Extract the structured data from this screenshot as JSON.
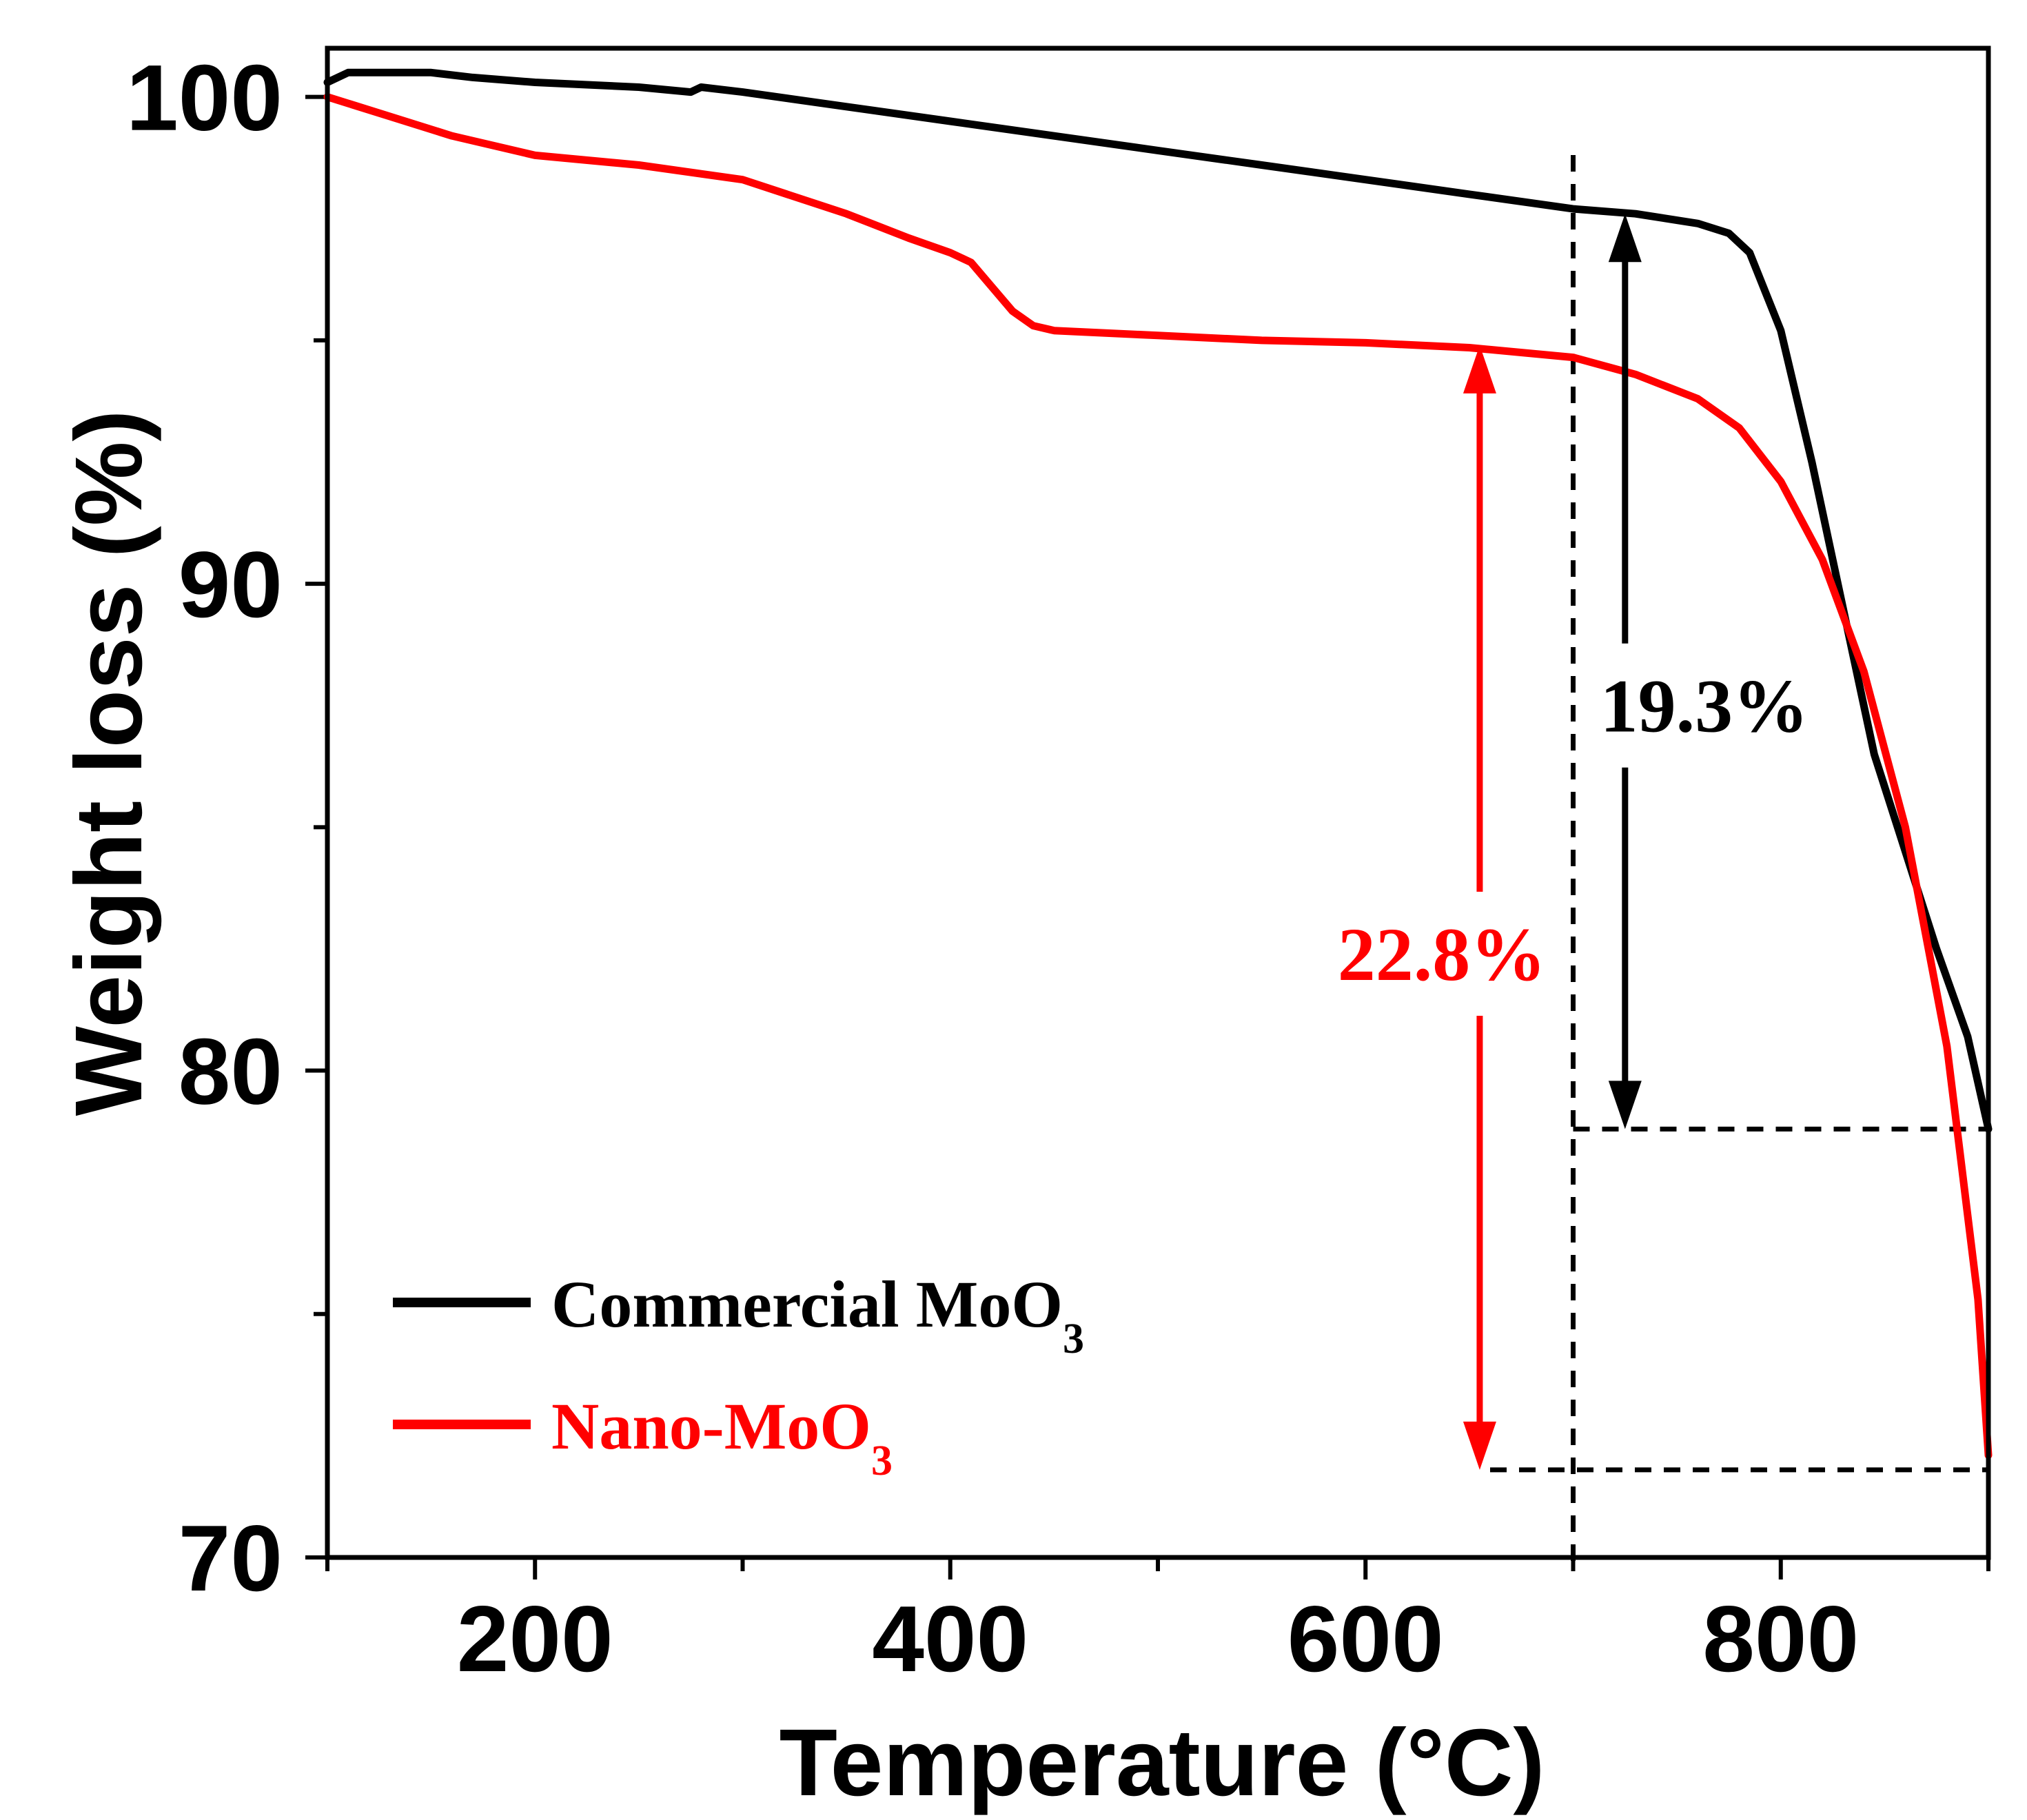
{
  "chart_data": {
    "type": "line",
    "xlabel": "Temperature (°C)",
    "ylabel": "Weight loss (%)",
    "xlim": [
      100,
      900
    ],
    "ylim": [
      70,
      101.0
    ],
    "x_ticks": [
      200,
      400,
      600,
      800
    ],
    "y_ticks": [
      70,
      80,
      90,
      100
    ],
    "x_tick_labels": [
      "200",
      "400",
      "600",
      "800"
    ],
    "y_tick_labels": [
      "70",
      "80",
      "90",
      "100"
    ],
    "series": [
      {
        "name": "Commercial MoO3",
        "legend_main": "Commercial MoO",
        "legend_sub": "3",
        "color": "#000000",
        "x": [
          100,
          110,
          120,
          150,
          170,
          200,
          250,
          275,
          280,
          300,
          350,
          400,
          450,
          500,
          550,
          600,
          650,
          700,
          730,
          760,
          775,
          785,
          800,
          815,
          830,
          845,
          860,
          875,
          890,
          900
        ],
        "y": [
          100.3,
          100.5,
          100.5,
          100.5,
          100.4,
          100.3,
          100.2,
          100.1,
          100.2,
          100.1,
          99.8,
          99.5,
          99.2,
          98.9,
          98.6,
          98.3,
          98.0,
          97.7,
          97.6,
          97.4,
          97.2,
          96.8,
          95.2,
          92.5,
          89.5,
          86.5,
          84.5,
          82.5,
          80.7,
          78.8
        ]
      },
      {
        "name": "Nano-MoO3",
        "legend_main": "Nano-MoO",
        "legend_sub": "3",
        "color": "#ff0000",
        "x": [
          100,
          130,
          160,
          200,
          250,
          300,
          350,
          380,
          400,
          410,
          420,
          430,
          440,
          450,
          500,
          550,
          600,
          650,
          700,
          730,
          760,
          780,
          800,
          820,
          840,
          860,
          880,
          895,
          900
        ],
        "y": [
          100.0,
          99.6,
          99.2,
          98.8,
          98.6,
          98.3,
          97.6,
          97.1,
          96.8,
          96.6,
          96.1,
          95.6,
          95.3,
          95.2,
          95.1,
          95.0,
          94.95,
          94.85,
          94.65,
          94.3,
          93.8,
          93.2,
          92.1,
          90.5,
          88.2,
          85.0,
          80.5,
          75.3,
          72.1
        ]
      }
    ],
    "reference_lines": {
      "vertical_x": 700,
      "horizontal_commercial_y": 78.8,
      "horizontal_nano_y": 71.8,
      "horizontal_commercial_from_x": 700,
      "horizontal_nano_from_x": 660
    },
    "annotations": [
      {
        "text": "19.3%",
        "color": "#000000",
        "x": 725,
        "y_top": 97.6,
        "y_bottom": 78.8,
        "label_y": 87.5
      },
      {
        "text": "22.8%",
        "color": "#ff0000",
        "x": 655,
        "y_top": 94.9,
        "y_bottom": 71.8,
        "label_y": 82.4
      }
    ],
    "legend_position": "bottom-left"
  }
}
